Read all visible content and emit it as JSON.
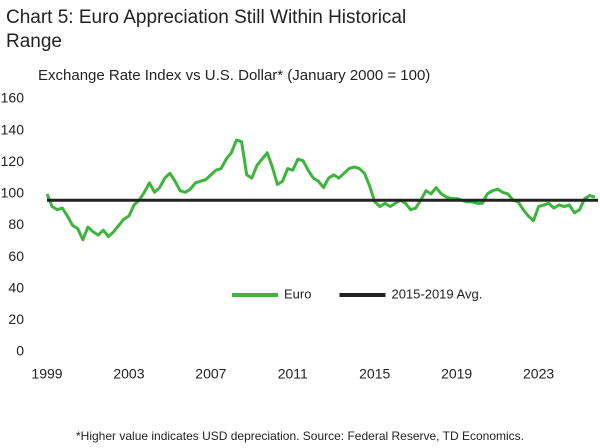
{
  "chart_data": {
    "type": "line",
    "title": "Chart 5: Euro Appreciation Still Within Historical Range",
    "subtitle": "Exchange Rate Index vs U.S. Dollar* (January 2000 = 100)",
    "footnote": "*Higher value indicates USD depreciation. Source: Federal Reserve, TD Economics.",
    "xlim": [
      1999,
      2025.9
    ],
    "xticks": [
      1999,
      2003,
      2007,
      2011,
      2015,
      2019,
      2023
    ],
    "ylim": [
      0,
      160
    ],
    "yticks": [
      0,
      20,
      40,
      60,
      80,
      100,
      120,
      140,
      160
    ],
    "legend": "center",
    "series": [
      {
        "name": "Euro",
        "color": "#3db53d",
        "x": [
          1999,
          1999.25,
          1999.5,
          1999.75,
          2000,
          2000.25,
          2000.5,
          2000.75,
          2001,
          2001.25,
          2001.5,
          2001.75,
          2002,
          2002.25,
          2002.5,
          2002.75,
          2003,
          2003.25,
          2003.5,
          2003.75,
          2004,
          2004.25,
          2004.5,
          2004.75,
          2005,
          2005.25,
          2005.5,
          2005.75,
          2006,
          2006.25,
          2006.5,
          2006.75,
          2007,
          2007.25,
          2007.5,
          2007.75,
          2008,
          2008.25,
          2008.5,
          2008.75,
          2009,
          2009.25,
          2009.5,
          2009.75,
          2010,
          2010.25,
          2010.5,
          2010.75,
          2011,
          2011.25,
          2011.5,
          2011.75,
          2012,
          2012.25,
          2012.5,
          2012.75,
          2013,
          2013.25,
          2013.5,
          2013.75,
          2014,
          2014.25,
          2014.5,
          2014.75,
          2015,
          2015.25,
          2015.5,
          2015.75,
          2016,
          2016.25,
          2016.5,
          2016.75,
          2017,
          2017.25,
          2017.5,
          2017.75,
          2018,
          2018.25,
          2018.5,
          2018.75,
          2019,
          2019.25,
          2019.5,
          2019.75,
          2020,
          2020.25,
          2020.5,
          2020.75,
          2021,
          2021.25,
          2021.5,
          2021.75,
          2022,
          2022.25,
          2022.5,
          2022.75,
          2023,
          2023.25,
          2023.5,
          2023.75,
          2024,
          2024.25,
          2024.5,
          2024.75,
          2025,
          2025.25,
          2025.5,
          2025.75
        ],
        "values": [
          100,
          92,
          90,
          91,
          86,
          80,
          78,
          71,
          79,
          76,
          74,
          77,
          73,
          76,
          80,
          84,
          86,
          93,
          96,
          101,
          107,
          101,
          104,
          110,
          113,
          108,
          102,
          101,
          103,
          107,
          108,
          109,
          112,
          115,
          116,
          122,
          126,
          134,
          133,
          112,
          110,
          118,
          122,
          126,
          117,
          106,
          108,
          116,
          115,
          122,
          121,
          115,
          110,
          108,
          104,
          110,
          112,
          110,
          113,
          116,
          117,
          116,
          113,
          105,
          95,
          92,
          94,
          92,
          94,
          96,
          94,
          90,
          91,
          96,
          102,
          100,
          104,
          100,
          98,
          97,
          97,
          96,
          95,
          95,
          94,
          94,
          100,
          102,
          103,
          101,
          100,
          96,
          95,
          90,
          86,
          83,
          92,
          93,
          94,
          91,
          93,
          92,
          93,
          88,
          90,
          97,
          99,
          98
        ]
      },
      {
        "name": "2015-2019 Avg.",
        "color": "#222222",
        "x": [
          1999,
          2025.9
        ],
        "values": [
          96,
          96
        ]
      }
    ]
  }
}
